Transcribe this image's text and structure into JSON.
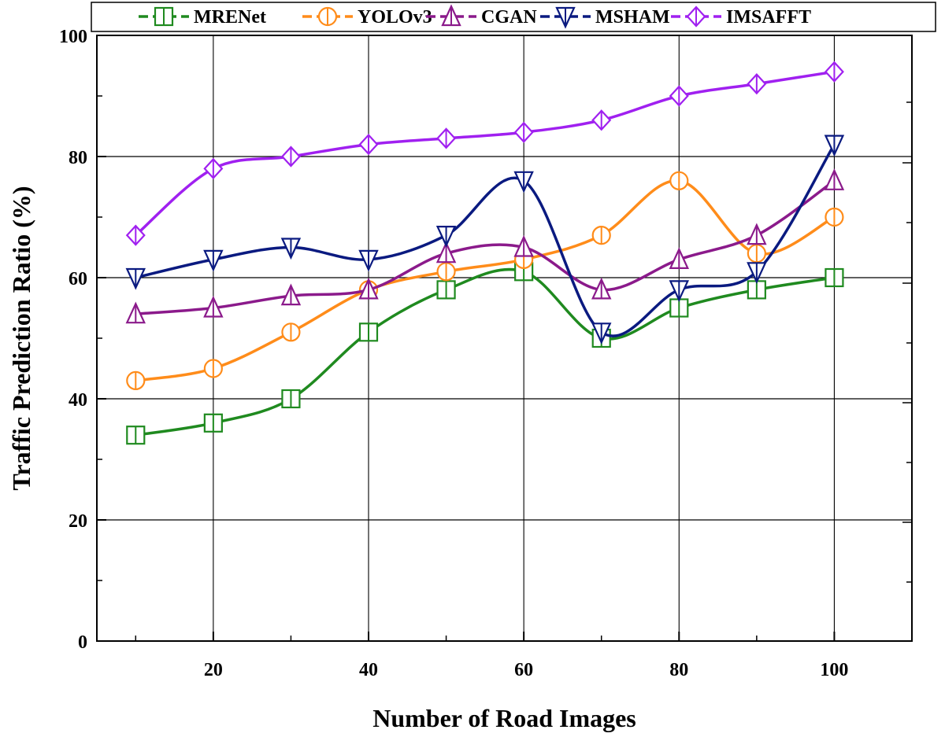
{
  "chart_data": {
    "type": "line",
    "title": "",
    "xlabel": "Number of Road Images",
    "ylabel": "Traffic Prediction Ratio (%)",
    "xlim": [
      5,
      110
    ],
    "ylim": [
      0,
      100
    ],
    "x_ticks": [
      20,
      40,
      60,
      80,
      100
    ],
    "x_tick_labels": [
      "20",
      "40",
      "60",
      "80",
      "100"
    ],
    "y_ticks": [
      0,
      20,
      40,
      60,
      80,
      100
    ],
    "y_tick_labels": [
      "0",
      "20",
      "40",
      "60",
      "80",
      "100"
    ],
    "grid": "horizontal and vertical at major ticks",
    "legend_position": "top, above plot, single row",
    "x": [
      10,
      20,
      30,
      40,
      50,
      60,
      70,
      80,
      90,
      100
    ],
    "series": [
      {
        "name": "MRENet",
        "color": "#1f8a1f",
        "marker": "square-cross",
        "values": [
          34,
          36,
          40,
          51,
          58,
          61,
          50,
          55,
          58,
          60
        ]
      },
      {
        "name": "YOLOv3",
        "color": "#ff8c1a",
        "marker": "circle-bar",
        "values": [
          43,
          45,
          51,
          58,
          61,
          63,
          67,
          76,
          64,
          70
        ]
      },
      {
        "name": "CGAN",
        "color": "#8b1a8b",
        "marker": "triangle-up",
        "values": [
          54,
          55,
          57,
          58,
          64,
          65,
          58,
          63,
          67,
          76
        ]
      },
      {
        "name": "MSHAM",
        "color": "#0a1a80",
        "marker": "triangle-down",
        "values": [
          60,
          63,
          65,
          63,
          67,
          76,
          51,
          58,
          61,
          82
        ]
      },
      {
        "name": "IMSAFFT",
        "color": "#a020f0",
        "marker": "diamond-bar",
        "values": [
          67,
          78,
          80,
          82,
          83,
          84,
          86,
          90,
          92,
          94
        ]
      }
    ]
  }
}
